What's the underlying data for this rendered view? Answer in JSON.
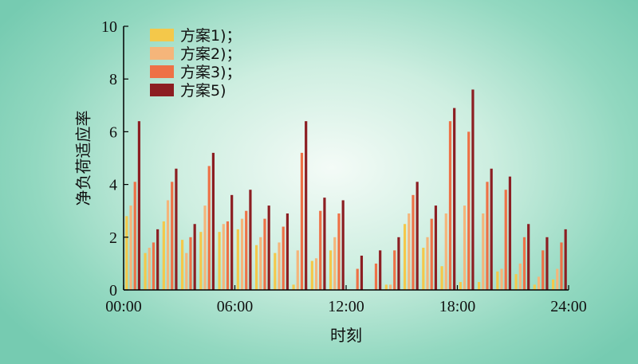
{
  "chart_data": {
    "type": "bar",
    "title": "",
    "xlabel": "时刻",
    "ylabel": "净负荷适应率",
    "ylim": [
      0,
      10
    ],
    "xlim": [
      0,
      24
    ],
    "y_ticks": [
      "0",
      "2",
      "4",
      "6",
      "8",
      "10"
    ],
    "x_ticks": [
      "00:00",
      "06:00",
      "12:00",
      "18:00",
      "24:00"
    ],
    "grid": false,
    "legend_position": "top-left",
    "categories": [
      "1",
      "2",
      "3",
      "4",
      "5",
      "6",
      "7",
      "8",
      "9",
      "10",
      "11",
      "12",
      "13",
      "14",
      "15",
      "16",
      "17",
      "18",
      "19",
      "20",
      "21",
      "22",
      "23",
      "24"
    ],
    "series": [
      {
        "name": "方案1)；",
        "color": "#f4c84a",
        "values": [
          2.8,
          1.4,
          2.6,
          1.9,
          2.2,
          2.2,
          2.3,
          1.7,
          1.4,
          0.2,
          1.1,
          1.5,
          0.0,
          0.0,
          0.2,
          2.5,
          1.6,
          0.9,
          0.3,
          0.3,
          0.7,
          0.6,
          0.2,
          0.4
        ]
      },
      {
        "name": "方案2)；",
        "color": "#f5b57a",
        "values": [
          3.2,
          1.6,
          3.4,
          1.4,
          3.2,
          2.5,
          2.7,
          2.0,
          1.8,
          1.5,
          1.2,
          2.0,
          0.0,
          0.0,
          0.2,
          2.9,
          2.0,
          2.9,
          3.2,
          2.9,
          0.8,
          1.0,
          0.5,
          0.8
        ]
      },
      {
        "name": "方案3)；",
        "color": "#ee7146",
        "values": [
          4.1,
          1.8,
          4.1,
          2.0,
          4.7,
          2.6,
          3.0,
          2.7,
          2.4,
          5.2,
          3.0,
          2.9,
          0.8,
          1.0,
          1.5,
          3.6,
          2.7,
          6.4,
          6.0,
          4.1,
          3.8,
          2.0,
          1.5,
          1.8
        ]
      },
      {
        "name": "方案5)",
        "color": "#8c1e22",
        "values": [
          6.4,
          2.3,
          4.6,
          2.5,
          5.2,
          3.6,
          3.8,
          3.2,
          2.9,
          6.4,
          3.5,
          3.4,
          1.3,
          1.5,
          2.0,
          4.1,
          3.2,
          6.9,
          7.6,
          4.6,
          4.3,
          2.5,
          2.0,
          2.3
        ]
      }
    ]
  }
}
